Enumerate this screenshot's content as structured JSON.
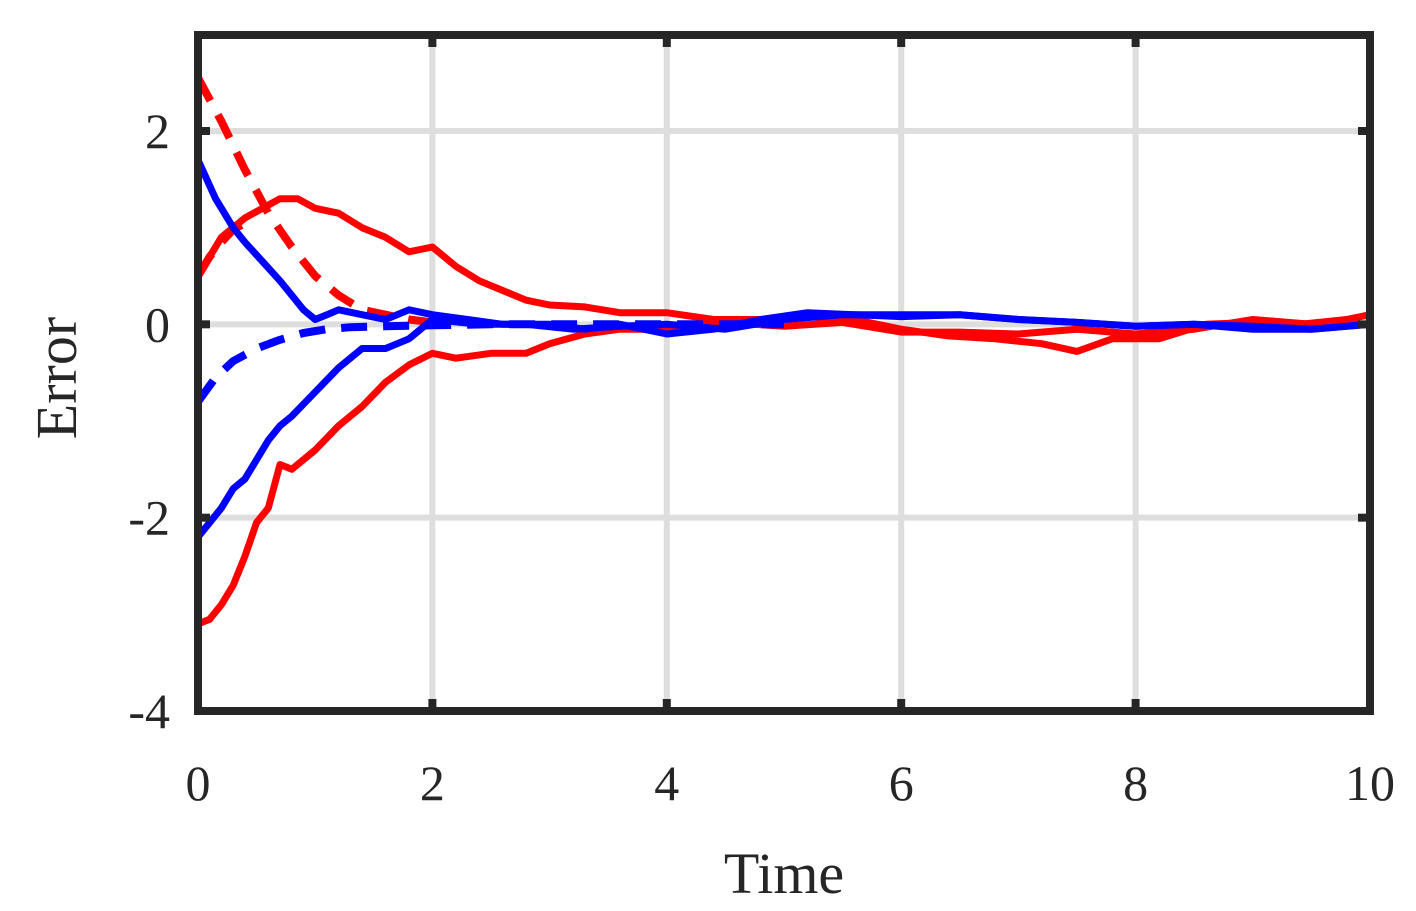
{
  "chart_data": {
    "type": "line",
    "title": "",
    "xlabel": "Time",
    "ylabel": "Error",
    "xlim": [
      0,
      10
    ],
    "ylim": [
      -4,
      3
    ],
    "xticks": [
      0,
      2,
      4,
      6,
      8,
      10
    ],
    "xtick_labels": [
      "0",
      "2",
      "4",
      "6",
      "8",
      "10"
    ],
    "yticks": [
      -4,
      -2,
      0,
      2
    ],
    "ytick_labels": [
      "-4",
      "-2",
      "0",
      "2"
    ],
    "grid": true,
    "legend": null,
    "colors": {
      "red": "#ff0000",
      "blue": "#0000ff",
      "grid": "#dedede",
      "axis": "#262626"
    },
    "series": [
      {
        "name": "red-solid-upper",
        "color": "#ff0000",
        "style": "solid",
        "x": [
          0,
          0.2,
          0.4,
          0.55,
          0.7,
          0.85,
          1.0,
          1.2,
          1.4,
          1.6,
          1.8,
          2.0,
          2.2,
          2.4,
          2.6,
          2.8,
          3.0,
          3.3,
          3.6,
          4.0,
          4.4,
          4.8,
          5.2,
          5.6,
          6.0,
          6.4,
          6.8,
          7.2,
          7.5,
          7.8,
          8.2,
          8.6,
          9.0,
          9.4,
          9.8,
          10.0
        ],
        "y": [
          0.5,
          0.9,
          1.1,
          1.2,
          1.3,
          1.3,
          1.2,
          1.15,
          1.0,
          0.9,
          0.75,
          0.8,
          0.6,
          0.45,
          0.35,
          0.25,
          0.2,
          0.18,
          0.12,
          0.12,
          0.05,
          0.05,
          0.08,
          0.05,
          -0.05,
          -0.12,
          -0.15,
          -0.2,
          -0.28,
          -0.15,
          -0.15,
          0.0,
          0.02,
          0.0,
          0.05,
          0.1
        ]
      },
      {
        "name": "red-solid-lower",
        "color": "#ff0000",
        "style": "solid",
        "x": [
          0,
          0.1,
          0.2,
          0.3,
          0.4,
          0.5,
          0.6,
          0.7,
          0.8,
          1.0,
          1.2,
          1.4,
          1.6,
          1.8,
          2.0,
          2.2,
          2.5,
          2.8,
          3.0,
          3.3,
          3.6,
          4.0,
          4.5,
          5.0,
          5.5,
          6.0,
          6.5,
          7.0,
          7.5,
          8.0,
          8.5,
          9.0,
          9.5,
          10.0
        ],
        "y": [
          -3.1,
          -3.05,
          -2.9,
          -2.7,
          -2.4,
          -2.05,
          -1.9,
          -1.45,
          -1.5,
          -1.3,
          -1.05,
          -0.85,
          -0.6,
          -0.42,
          -0.3,
          -0.35,
          -0.3,
          -0.3,
          -0.2,
          -0.1,
          -0.05,
          -0.05,
          0.02,
          -0.02,
          0.02,
          -0.08,
          -0.08,
          -0.1,
          -0.05,
          -0.1,
          -0.05,
          0.05,
          0.0,
          0.0
        ]
      },
      {
        "name": "red-dashed",
        "color": "#ff0000",
        "style": "dashed",
        "x": [
          0,
          0.2,
          0.4,
          0.6,
          0.8,
          1.0,
          1.2,
          1.4,
          1.6,
          1.8,
          2.0
        ],
        "y": [
          2.55,
          2.1,
          1.6,
          1.15,
          0.8,
          0.5,
          0.3,
          0.15,
          0.1,
          0.05,
          0.02
        ]
      },
      {
        "name": "red-dashed-lower-start",
        "color": "#ff0000",
        "style": "dashed",
        "x": [
          0,
          0.1,
          0.2,
          0.3,
          0.45
        ],
        "y": [
          0.5,
          0.7,
          0.85,
          0.98,
          1.08
        ]
      },
      {
        "name": "blue-solid-upper",
        "color": "#0000ff",
        "style": "solid",
        "x": [
          0,
          0.15,
          0.3,
          0.4,
          0.55,
          0.7,
          0.8,
          0.9,
          1.0,
          1.1,
          1.2,
          1.4,
          1.6,
          1.8,
          2.0,
          2.3,
          2.6,
          3.0,
          3.3,
          3.6,
          4.0,
          4.4,
          4.8,
          5.2,
          5.6,
          6.0,
          6.5,
          7.0,
          7.5,
          8.0,
          8.5,
          9.0,
          9.5,
          10.0
        ],
        "y": [
          1.7,
          1.3,
          1.0,
          0.85,
          0.65,
          0.45,
          0.3,
          0.15,
          0.05,
          0.1,
          0.15,
          0.1,
          0.05,
          0.15,
          0.1,
          0.05,
          0.0,
          0.0,
          -0.05,
          0.0,
          -0.1,
          -0.05,
          0.05,
          0.12,
          0.1,
          0.08,
          0.1,
          0.05,
          0.02,
          -0.02,
          0.0,
          -0.05,
          -0.05,
          0.0
        ]
      },
      {
        "name": "blue-solid-lower",
        "color": "#0000ff",
        "style": "solid",
        "x": [
          0,
          0.1,
          0.2,
          0.3,
          0.4,
          0.5,
          0.6,
          0.7,
          0.8,
          1.0,
          1.2,
          1.4,
          1.6,
          1.8,
          2.0,
          2.4,
          2.8,
          3.2,
          3.6,
          4.0,
          4.5,
          5.0,
          5.5,
          6.0,
          6.5,
          7.0,
          7.5,
          8.0,
          8.5,
          9.0,
          9.5,
          10.0
        ],
        "y": [
          -2.2,
          -2.05,
          -1.9,
          -1.7,
          -1.6,
          -1.4,
          -1.2,
          -1.05,
          -0.95,
          -0.7,
          -0.45,
          -0.25,
          -0.25,
          -0.15,
          0.05,
          0.0,
          0.0,
          -0.05,
          -0.02,
          0.0,
          -0.05,
          0.05,
          0.1,
          0.1,
          0.1,
          0.05,
          0.02,
          -0.02,
          0.0,
          -0.02,
          -0.05,
          0.0
        ]
      },
      {
        "name": "blue-dashed",
        "color": "#0000ff",
        "style": "dashed",
        "x": [
          0,
          0.15,
          0.3,
          0.5,
          0.7,
          0.9,
          1.1,
          1.3,
          1.6,
          2.0,
          2.5,
          3.0,
          4.0,
          5.0
        ],
        "y": [
          -0.8,
          -0.55,
          -0.38,
          -0.25,
          -0.16,
          -0.09,
          -0.05,
          -0.03,
          -0.02,
          -0.01,
          0.0,
          0.0,
          0.0,
          0.0
        ]
      }
    ]
  }
}
